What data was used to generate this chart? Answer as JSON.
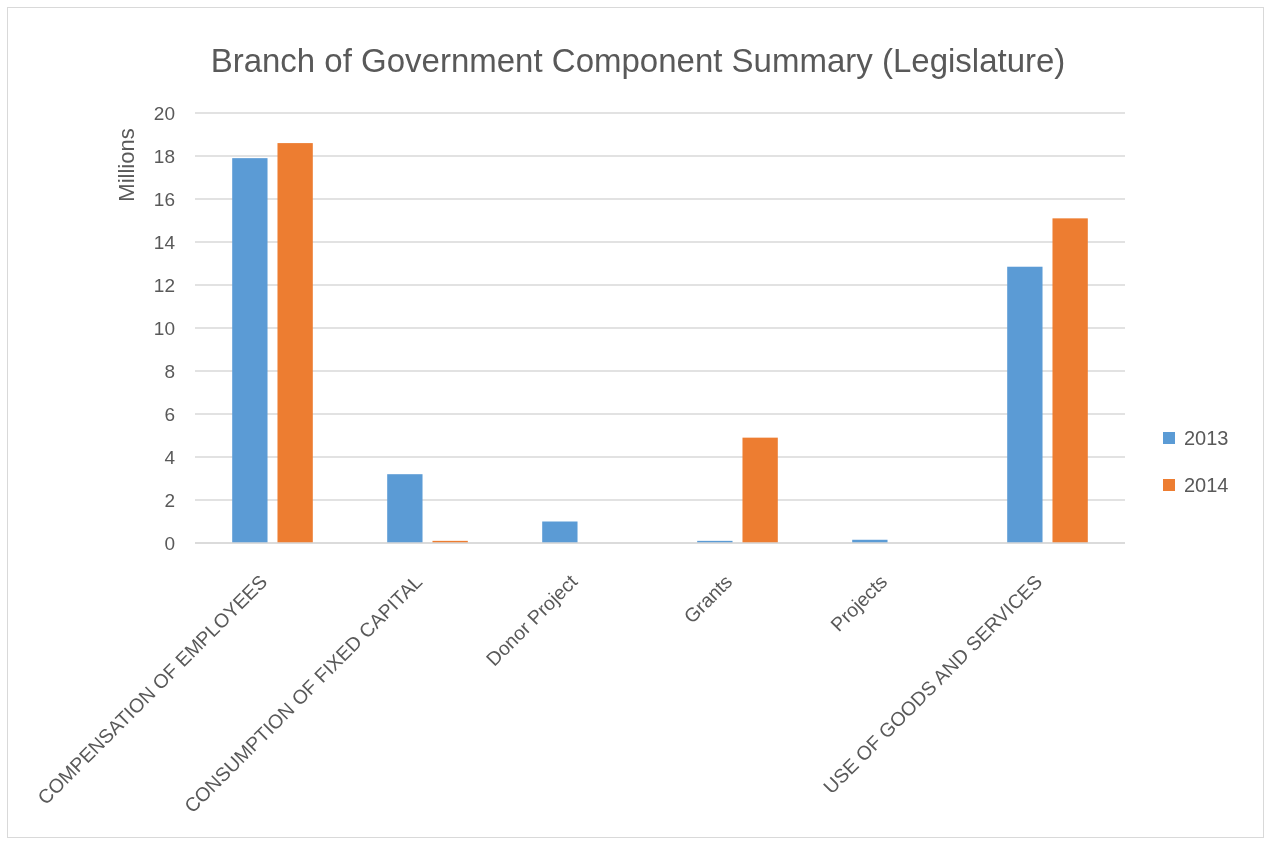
{
  "chart_data": {
    "type": "bar",
    "title": "Branch of Government Component Summary (Legislature)",
    "ylabel": "Millions",
    "categories": [
      "COMPENSATION OF EMPLOYEES",
      "CONSUMPTION OF FIXED CAPITAL",
      "Donor Project",
      "Grants",
      "Projects",
      "USE OF GOODS AND SERVICES"
    ],
    "series": [
      {
        "name": "2013",
        "color": "#5b9bd5",
        "values": [
          17.9,
          3.2,
          1.0,
          0.1,
          0.15,
          12.85
        ]
      },
      {
        "name": "2014",
        "color": "#ed7d31",
        "values": [
          18.6,
          0.1,
          null,
          4.9,
          null,
          15.1
        ]
      }
    ],
    "ylim": [
      0,
      20
    ],
    "yticks": [
      0,
      2,
      4,
      6,
      8,
      10,
      12,
      14,
      16,
      18,
      20
    ],
    "grid": "y",
    "legend": "right"
  }
}
